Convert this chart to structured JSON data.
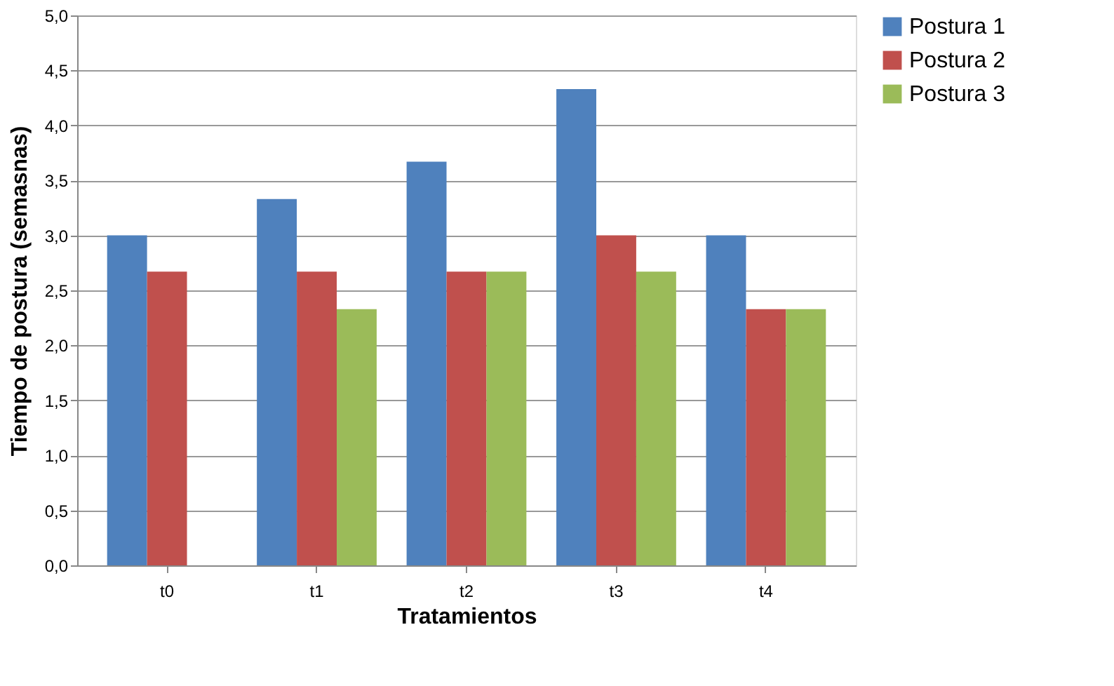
{
  "chart_data": {
    "type": "bar",
    "xlabel": "Tratamientos",
    "ylabel": "Tiempo de postura (semasnas)",
    "categories": [
      "t0",
      "t1",
      "t2",
      "t3",
      "t4"
    ],
    "series": [
      {
        "name": "Postura 1",
        "color": "#4f81bd",
        "values": [
          3.0,
          3.33,
          3.67,
          4.33,
          3.0
        ]
      },
      {
        "name": "Postura 2",
        "color": "#c0504d",
        "values": [
          2.67,
          2.67,
          2.67,
          3.0,
          2.33
        ]
      },
      {
        "name": "Postura 3",
        "color": "#9bbb59",
        "values": [
          null,
          2.33,
          2.67,
          2.67,
          2.33
        ]
      }
    ],
    "ylim": [
      0,
      5
    ],
    "yticks": [
      {
        "value": 0,
        "label": "0,0"
      },
      {
        "value": 0.5,
        "label": "0,5"
      },
      {
        "value": 1,
        "label": "1,0"
      },
      {
        "value": 1.5,
        "label": "1,5"
      },
      {
        "value": 2,
        "label": "2,0"
      },
      {
        "value": 2.5,
        "label": "2,5"
      },
      {
        "value": 3,
        "label": "3,0"
      },
      {
        "value": 3.5,
        "label": "3,5"
      },
      {
        "value": 4,
        "label": "4,0"
      },
      {
        "value": 4.5,
        "label": "4,5"
      },
      {
        "value": 5,
        "label": "5,0"
      }
    ],
    "grid": "y",
    "legend": "right"
  }
}
